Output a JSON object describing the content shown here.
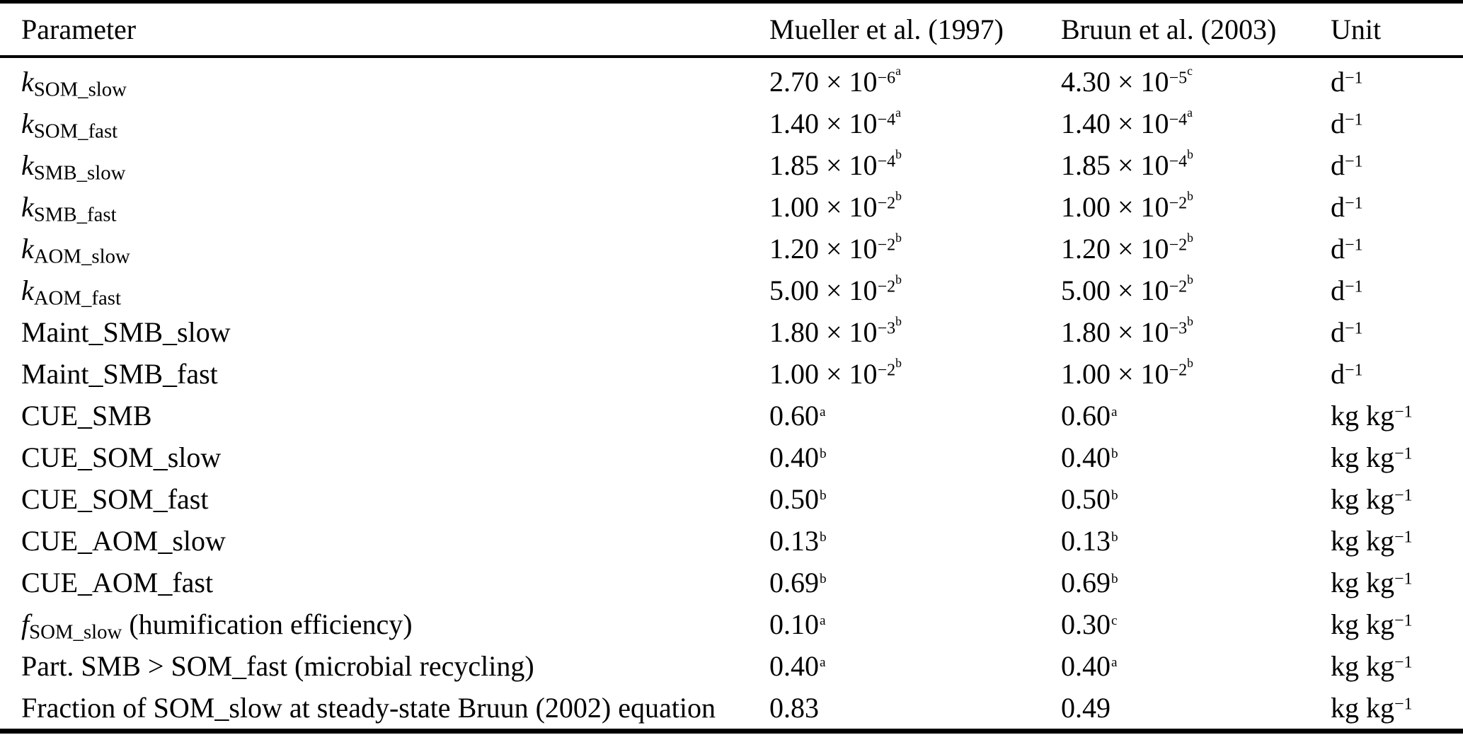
{
  "table": {
    "columns": [
      "Parameter",
      "Mueller et al. (1997)",
      "Bruun et al. (2003)",
      "Unit"
    ],
    "rows": [
      {
        "p_main": "k",
        "p_italic": true,
        "p_sub": "SOM_slow",
        "p_rest": "",
        "m_val": "2.70 × 10",
        "m_exp": "−6",
        "m_note": "a",
        "b_val": "4.30 × 10",
        "b_exp": "−5",
        "b_note": "c",
        "u_base": "d",
        "u_exp": "−1"
      },
      {
        "p_main": "k",
        "p_italic": true,
        "p_sub": "SOM_fast",
        "p_rest": "",
        "m_val": "1.40 × 10",
        "m_exp": "−4",
        "m_note": "a",
        "b_val": "1.40 × 10",
        "b_exp": "−4",
        "b_note": "a",
        "u_base": "d",
        "u_exp": "−1"
      },
      {
        "p_main": "k",
        "p_italic": true,
        "p_sub": "SMB_slow",
        "p_rest": "",
        "m_val": "1.85 × 10",
        "m_exp": "−4",
        "m_note": "b",
        "b_val": "1.85 × 10",
        "b_exp": "−4",
        "b_note": "b",
        "u_base": "d",
        "u_exp": "−1"
      },
      {
        "p_main": "k",
        "p_italic": true,
        "p_sub": "SMB_fast",
        "p_rest": "",
        "m_val": "1.00 × 10",
        "m_exp": "−2",
        "m_note": "b",
        "b_val": "1.00 × 10",
        "b_exp": "−2",
        "b_note": "b",
        "u_base": "d",
        "u_exp": "−1"
      },
      {
        "p_main": "k",
        "p_italic": true,
        "p_sub": "AOM_slow",
        "p_rest": "",
        "m_val": "1.20 × 10",
        "m_exp": "−2",
        "m_note": "b",
        "b_val": "1.20 × 10",
        "b_exp": "−2",
        "b_note": "b",
        "u_base": "d",
        "u_exp": "−1"
      },
      {
        "p_main": "k",
        "p_italic": true,
        "p_sub": "AOM_fast",
        "p_rest": "",
        "m_val": "5.00 × 10",
        "m_exp": "−2",
        "m_note": "b",
        "b_val": "5.00 × 10",
        "b_exp": "−2",
        "b_note": "b",
        "u_base": "d",
        "u_exp": "−1"
      },
      {
        "p_main": "Maint_SMB_slow",
        "p_italic": false,
        "p_sub": "",
        "p_rest": "",
        "m_val": "1.80 × 10",
        "m_exp": "−3",
        "m_note": "b",
        "b_val": "1.80 × 10",
        "b_exp": "−3",
        "b_note": "b",
        "u_base": "d",
        "u_exp": "−1"
      },
      {
        "p_main": "Maint_SMB_fast",
        "p_italic": false,
        "p_sub": "",
        "p_rest": "",
        "m_val": "1.00 × 10",
        "m_exp": "−2",
        "m_note": "b",
        "b_val": "1.00 × 10",
        "b_exp": "−2",
        "b_note": "b",
        "u_base": "d",
        "u_exp": "−1"
      },
      {
        "p_main": "CUE_SMB",
        "p_italic": false,
        "p_sub": "",
        "p_rest": "",
        "m_val": "0.60",
        "m_exp": "",
        "m_note": "a",
        "b_val": "0.60",
        "b_exp": "",
        "b_note": "a",
        "u_base": "kg kg",
        "u_exp": "−1"
      },
      {
        "p_main": "CUE_SOM_slow",
        "p_italic": false,
        "p_sub": "",
        "p_rest": "",
        "m_val": "0.40",
        "m_exp": "",
        "m_note": "b",
        "b_val": "0.40",
        "b_exp": "",
        "b_note": "b",
        "u_base": "kg kg",
        "u_exp": "−1"
      },
      {
        "p_main": "CUE_SOM_fast",
        "p_italic": false,
        "p_sub": "",
        "p_rest": "",
        "m_val": "0.50",
        "m_exp": "",
        "m_note": "b",
        "b_val": "0.50",
        "b_exp": "",
        "b_note": "b",
        "u_base": "kg kg",
        "u_exp": "−1"
      },
      {
        "p_main": "CUE_AOM_slow",
        "p_italic": false,
        "p_sub": "",
        "p_rest": "",
        "m_val": "0.13",
        "m_exp": "",
        "m_note": "b",
        "b_val": "0.13",
        "b_exp": "",
        "b_note": "b",
        "u_base": "kg kg",
        "u_exp": "−1"
      },
      {
        "p_main": "CUE_AOM_fast",
        "p_italic": false,
        "p_sub": "",
        "p_rest": "",
        "m_val": "0.69",
        "m_exp": "",
        "m_note": "b",
        "b_val": "0.69",
        "b_exp": "",
        "b_note": "b",
        "u_base": "kg kg",
        "u_exp": "−1"
      },
      {
        "p_main": "f",
        "p_italic": true,
        "p_sub": "SOM_slow",
        "p_rest": " (humification efficiency)",
        "m_val": "0.10",
        "m_exp": "",
        "m_note": "a",
        "b_val": "0.30",
        "b_exp": "",
        "b_note": "c",
        "u_base": "kg kg",
        "u_exp": "−1"
      },
      {
        "p_main": "Part. SMB > SOM_fast (microbial recycling)",
        "p_italic": false,
        "p_sub": "",
        "p_rest": "",
        "m_val": "0.40",
        "m_exp": "",
        "m_note": "a",
        "b_val": "0.40",
        "b_exp": "",
        "b_note": "a",
        "u_base": "kg kg",
        "u_exp": "−1"
      },
      {
        "p_main": "Fraction of SOM_slow at steady-state Bruun (2002) equation",
        "p_italic": false,
        "p_sub": "",
        "p_rest": "",
        "m_val": "0.83",
        "m_exp": "",
        "m_note": "",
        "b_val": "0.49",
        "b_exp": "",
        "b_note": "",
        "u_base": "kg kg",
        "u_exp": "−1"
      }
    ]
  }
}
